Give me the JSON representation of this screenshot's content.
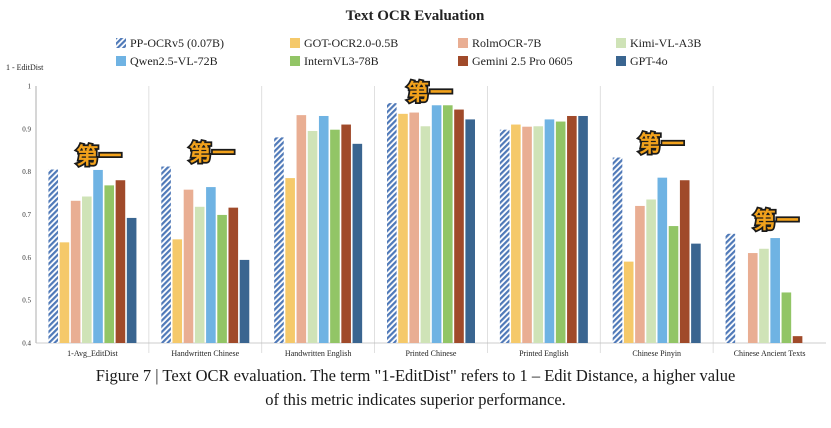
{
  "chart_data": {
    "type": "bar",
    "title": "Text OCR Evaluation",
    "ylabel": "1 - EditDist",
    "xlabel": "",
    "ylim": [
      0.4,
      1.0
    ],
    "yticks": [
      0.4,
      0.5,
      0.6,
      0.7,
      0.8,
      0.9,
      1
    ],
    "ytick_labels": [
      "0.4",
      "0.5",
      "0.6",
      "0.7",
      "0.8",
      "0.9",
      "1"
    ],
    "legend_placement": "top",
    "grid": false,
    "categories": [
      "1-Avg_EditDist",
      "Handwritten Chinese",
      "Handwritten English",
      "Printed Chinese",
      "Printed English",
      "Chinese Pinyin",
      "Chinese Ancient Texts"
    ],
    "series": [
      {
        "name": "PP-OCRv5 (0.07B)",
        "color": "#4f79b8",
        "pattern": "hatch",
        "values": [
          0.805,
          0.812,
          0.88,
          0.96,
          0.898,
          0.833,
          0.655
        ]
      },
      {
        "name": "GOT-OCR2.0-0.5B",
        "color": "#f5c96a",
        "values": [
          0.635,
          0.642,
          0.785,
          0.935,
          0.91,
          0.59,
          null
        ]
      },
      {
        "name": "RolmOCR-7B",
        "color": "#e9ae93",
        "values": [
          0.732,
          0.758,
          0.932,
          0.938,
          0.905,
          0.72,
          0.61
        ]
      },
      {
        "name": "Kimi-VL-A3B",
        "color": "#cfe3b7",
        "values": [
          0.742,
          0.718,
          0.895,
          0.906,
          0.906,
          0.735,
          0.62
        ]
      },
      {
        "name": "Qwen2.5-VL-72B",
        "color": "#6fb3e3",
        "values": [
          0.804,
          0.764,
          0.93,
          0.955,
          0.922,
          0.786,
          0.645
        ]
      },
      {
        "name": "InternVL3-78B",
        "color": "#92c566",
        "values": [
          0.768,
          0.699,
          0.898,
          0.955,
          0.917,
          0.673,
          0.518
        ]
      },
      {
        "name": "Gemini 2.5 Pro 0605",
        "color": "#a04a2a",
        "values": [
          0.78,
          0.716,
          0.91,
          0.945,
          0.93,
          0.78,
          0.416
        ]
      },
      {
        "name": "GPT-4o",
        "color": "#3a6590",
        "values": [
          0.692,
          0.594,
          0.865,
          0.922,
          0.93,
          0.632,
          null
        ]
      }
    ],
    "annotations": [
      {
        "text": "第一",
        "category_index": 0
      },
      {
        "text": "第一",
        "category_index": 1
      },
      {
        "text": "第一",
        "category_index": 3
      },
      {
        "text": "第一",
        "category_index": 5
      },
      {
        "text": "第一",
        "category_index": 6
      }
    ]
  },
  "caption": {
    "line1": "Figure 7 | Text OCR evaluation. The term \"1-EditDist\" refers to 1 – Edit Distance, a higher value",
    "line2": "of this metric indicates superior performance."
  }
}
